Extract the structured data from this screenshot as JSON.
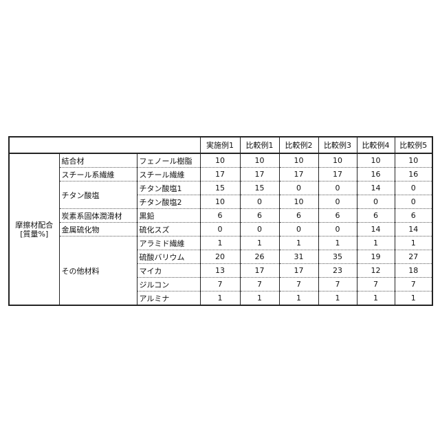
{
  "headers": [
    "実施例1",
    "比較例1",
    "比較例2",
    "比較例3",
    "比較例4",
    "比較例5"
  ],
  "group_label": "摩擦材配合",
  "group_unit": "[質量%]",
  "rows": [
    {
      "category": "結合材",
      "material": "フェノール樹脂",
      "values": [
        "10",
        "10",
        "10",
        "10",
        "10",
        "10"
      ]
    },
    {
      "category": "スチール系繊維",
      "material": "スチール繊維",
      "values": [
        "17",
        "17",
        "17",
        "17",
        "16",
        "16"
      ]
    },
    {
      "category": "チタン酸塩",
      "material": "チタン酸塩1",
      "values": [
        "15",
        "15",
        "0",
        "0",
        "14",
        "0"
      ]
    },
    {
      "category": "",
      "material": "チタン酸塩2",
      "values": [
        "10",
        "0",
        "10",
        "0",
        "0",
        "0"
      ]
    },
    {
      "category": "炭素系固体潤滑材",
      "material": "黒鉛",
      "values": [
        "6",
        "6",
        "6",
        "6",
        "6",
        "6"
      ]
    },
    {
      "category": "金属硫化物",
      "material": "硫化スズ",
      "values": [
        "0",
        "0",
        "0",
        "0",
        "14",
        "14"
      ]
    },
    {
      "category": "その他材料",
      "material": "アラミド繊維",
      "values": [
        "1",
        "1",
        "1",
        "1",
        "1",
        "1"
      ]
    },
    {
      "category": "",
      "material": "硫酸バリウム",
      "values": [
        "20",
        "26",
        "31",
        "35",
        "19",
        "27"
      ]
    },
    {
      "category": "",
      "material": "マイカ",
      "values": [
        "13",
        "17",
        "17",
        "23",
        "12",
        "18"
      ]
    },
    {
      "category": "",
      "material": "ジルコン",
      "values": [
        "7",
        "7",
        "7",
        "7",
        "7",
        "7"
      ]
    },
    {
      "category": "",
      "material": "アルミナ",
      "values": [
        "1",
        "1",
        "1",
        "1",
        "1",
        "1"
      ]
    }
  ]
}
